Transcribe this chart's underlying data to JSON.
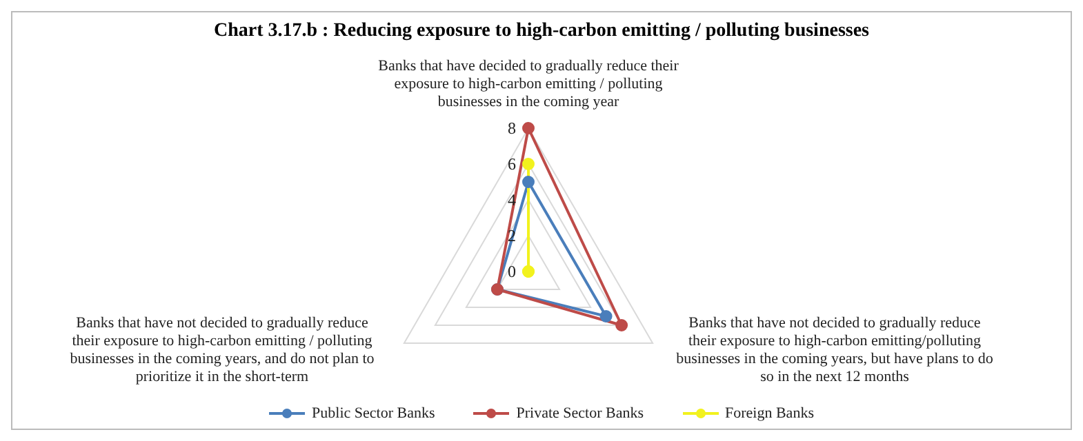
{
  "chart_data": {
    "type": "radar",
    "title": "Chart 3.17.b : Reducing exposure to high-carbon emitting / polluting businesses",
    "categories": [
      "Banks that have decided to gradually reduce their exposure to high-carbon emitting / polluting businesses in the coming year",
      "Banks that have not decided to gradually reduce their exposure to high-carbon emitting/polluting businesses in the coming years, but have plans to do so in the next 12 months",
      "Banks that have not decided to gradually reduce their exposure to high-carbon emitting / polluting businesses in the coming years, and do not plan to prioritize it in the short-term"
    ],
    "series": [
      {
        "name": "Public Sector Banks",
        "color": "#4a7ebb",
        "values": [
          5,
          5,
          2
        ]
      },
      {
        "name": "Private Sector Banks",
        "color": "#be4b48",
        "values": [
          8,
          6,
          2
        ]
      },
      {
        "name": "Foreign Banks",
        "color": "#f2f21e",
        "values": [
          6,
          0,
          0
        ]
      }
    ],
    "ylim": [
      0,
      8
    ],
    "yticks": [
      0,
      2,
      4,
      6,
      8
    ],
    "grid": true,
    "legend": "bottom",
    "marker": "circle"
  }
}
